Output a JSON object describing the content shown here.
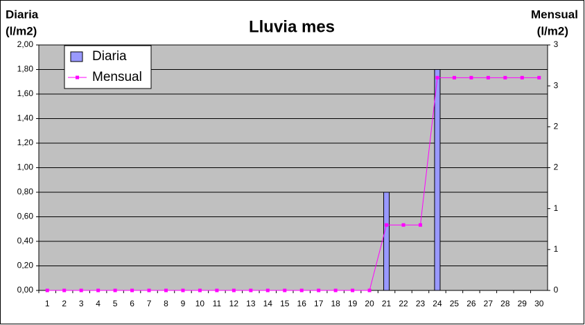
{
  "chart_data": {
    "type": "bar_line",
    "title": "Lluvia mes",
    "ylabel": [
      "Diaria",
      "(l/m2)"
    ],
    "y2label": [
      "Mensual",
      "(l/m2)"
    ],
    "categories": [
      "1",
      "2",
      "3",
      "4",
      "5",
      "6",
      "7",
      "8",
      "9",
      "10",
      "11",
      "12",
      "13",
      "14",
      "15",
      "16",
      "17",
      "18",
      "19",
      "20",
      "21",
      "22",
      "23",
      "24",
      "25",
      "26",
      "27",
      "28",
      "29",
      "30"
    ],
    "series": [
      {
        "name": "Diaria",
        "type": "bar",
        "color": "#9999ff",
        "values": [
          0,
          0,
          0,
          0,
          0,
          0,
          0,
          0,
          0,
          0,
          0,
          0,
          0,
          0,
          0,
          0,
          0,
          0,
          0,
          0,
          0.8,
          0,
          0,
          1.8,
          0,
          0,
          0,
          0,
          0,
          0
        ]
      },
      {
        "name": "Mensual",
        "type": "line",
        "axis": "y2",
        "color": "#ff00ff",
        "values": [
          0,
          0,
          0,
          0,
          0,
          0,
          0,
          0,
          0,
          0,
          0,
          0,
          0,
          0,
          0,
          0,
          0,
          0,
          0,
          0,
          0.8,
          0.8,
          0.8,
          2.6,
          2.6,
          2.6,
          2.6,
          2.6,
          2.6,
          2.6
        ]
      }
    ],
    "ylim": [
      0,
      2
    ],
    "yticks": [
      {
        "value": 0,
        "label": "0,00"
      },
      {
        "value": 0.2,
        "label": "0,20"
      },
      {
        "value": 0.4,
        "label": "0,40"
      },
      {
        "value": 0.6,
        "label": "0,60"
      },
      {
        "value": 0.8,
        "label": "0,80"
      },
      {
        "value": 1,
        "label": "1,00"
      },
      {
        "value": 1.2,
        "label": "1,20"
      },
      {
        "value": 1.4,
        "label": "1,40"
      },
      {
        "value": 1.6,
        "label": "1,60"
      },
      {
        "value": 1.8,
        "label": "1,80"
      },
      {
        "value": 2,
        "label": "2,00"
      }
    ],
    "y2lim": [
      0,
      3
    ],
    "y2ticks": [
      0,
      {
        "value": 0.5,
        "label": "1"
      },
      1,
      {
        "value": 1.5,
        "label": "2"
      },
      2,
      {
        "value": 2.5,
        "label": "3"
      },
      3
    ],
    "grid": true,
    "legend": "top-left",
    "plot_background": "#c0c0c0"
  }
}
